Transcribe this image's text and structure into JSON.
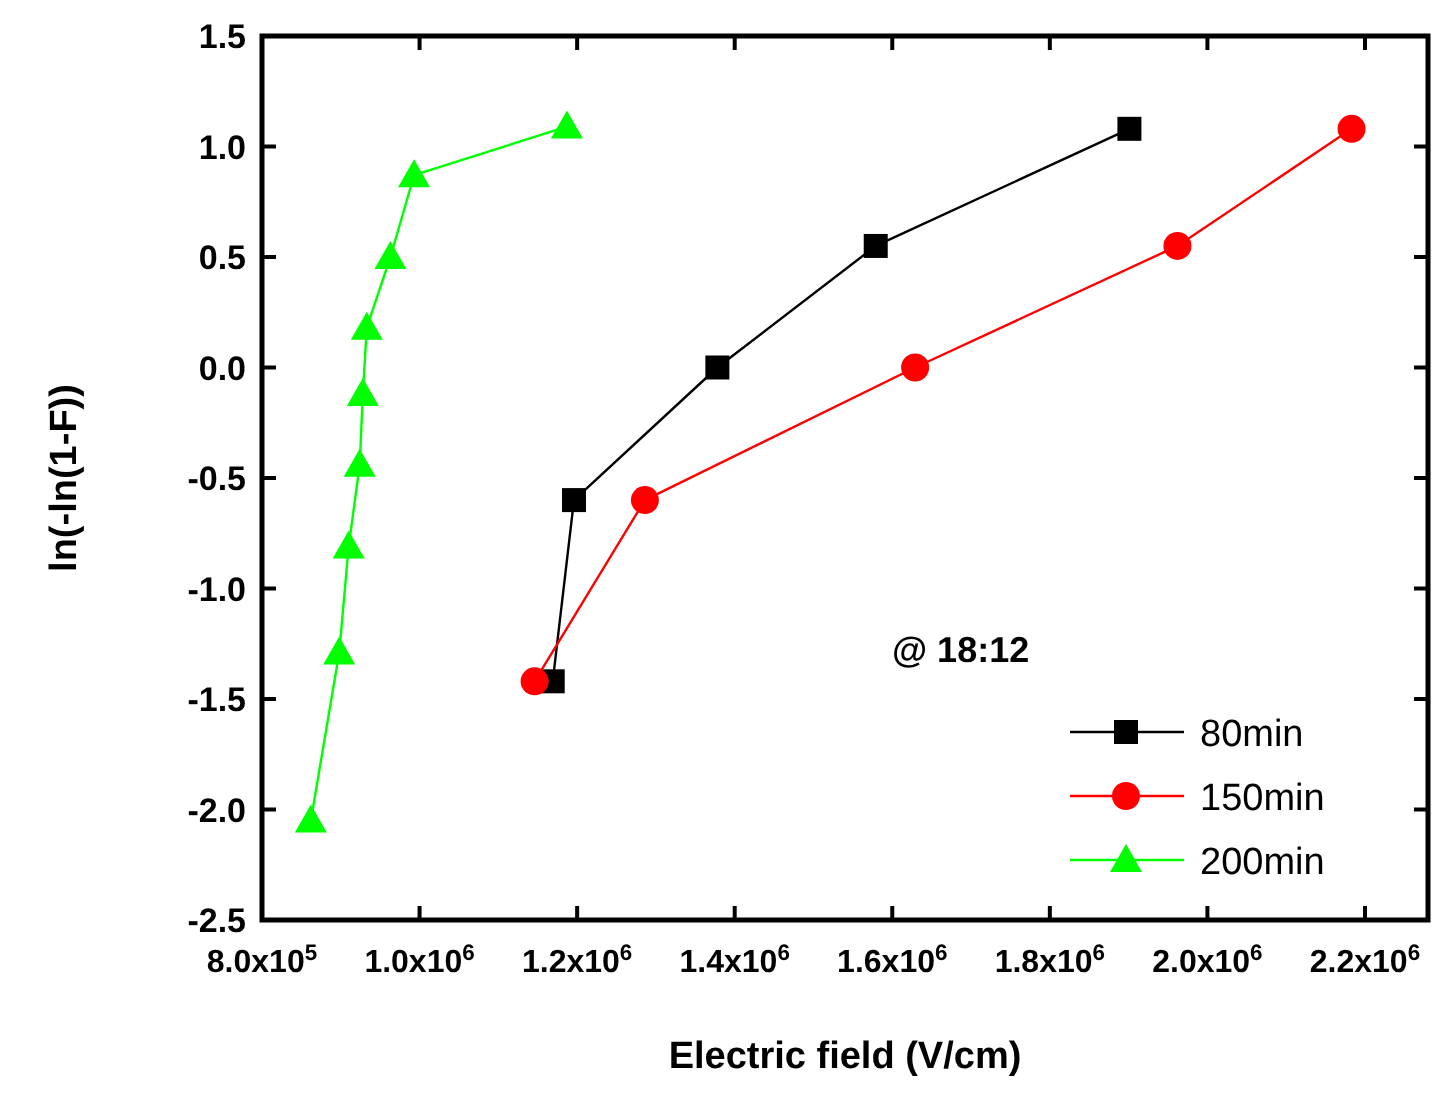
{
  "chart_data": {
    "type": "line",
    "xlabel": "Electric field (V/cm)",
    "ylabel": "ln(-ln(1-F))",
    "annotations": [
      "@ 18:12"
    ],
    "xlim": [
      800000,
      2280000
    ],
    "ylim": [
      -2.5,
      1.5
    ],
    "xticks": [
      {
        "value": 800000,
        "label": "8.0x10$^{5}$"
      },
      {
        "value": 1000000,
        "label": "1.0x10$^{6}$"
      },
      {
        "value": 1200000,
        "label": "1.2x10$^{6}$"
      },
      {
        "value": 1400000,
        "label": "1.4x10$^{6}$"
      },
      {
        "value": 1600000,
        "label": "1.6x10$^{6}$"
      },
      {
        "value": 1800000,
        "label": "1.8x10$^{6}$"
      },
      {
        "value": 2000000,
        "label": "2.0x10$^{6}$"
      },
      {
        "value": 2200000,
        "label": "2.2x10$^{6}$"
      }
    ],
    "yticks": [
      {
        "value": -2.5,
        "label": "-2.5"
      },
      {
        "value": -2,
        "label": "-2.0"
      },
      {
        "value": -1.5,
        "label": "-1.5"
      },
      {
        "value": -1,
        "label": "-1.0"
      },
      {
        "value": -0.5,
        "label": "-0.5"
      },
      {
        "value": 0,
        "label": "0.0"
      },
      {
        "value": 0.5,
        "label": "0.5"
      },
      {
        "value": 1,
        "label": "1.0"
      },
      {
        "value": 1.5,
        "label": "1.5"
      }
    ],
    "grid": false,
    "legend": "bottom right",
    "line_style": "solid",
    "series": [
      {
        "name": "80min",
        "color": "#000000",
        "marker": "square",
        "x": [
          1169000,
          1196000,
          1378000,
          1579000,
          1901000
        ],
        "values": [
          -1.42,
          -0.6,
          0,
          0.55,
          1.08
        ]
      },
      {
        "name": "150min",
        "color": "#ff0000",
        "marker": "circle",
        "x": [
          1146000,
          1286000,
          1629000,
          1962000,
          2183000
        ],
        "values": [
          -1.42,
          -0.6,
          0,
          0.55,
          1.08
        ]
      },
      {
        "name": "200min",
        "color": "#00ff00",
        "marker": "triangle",
        "x": [
          862000,
          898000,
          910000,
          924000,
          928000,
          933000,
          963000,
          993000,
          1187000
        ],
        "values": [
          -2.05,
          -1.29,
          -0.81,
          -0.44,
          -0.12,
          0.18,
          0.5,
          0.87,
          1.09
        ]
      }
    ]
  }
}
